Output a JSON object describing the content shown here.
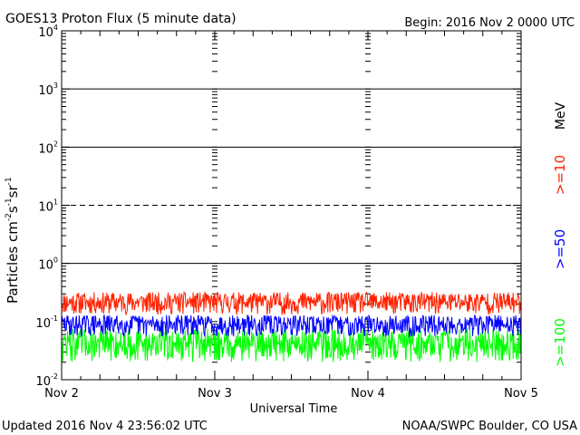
{
  "chart_data": {
    "type": "line",
    "title": "GOES13 Proton Flux (5 minute data)",
    "begin_label": "Begin: 2016 Nov 2 0000 UTC",
    "xlabel": "Universal Time",
    "ylabel_main": "Particles cm",
    "ylabel_sup1": "-2",
    "ylabel_mid1": "s",
    "ylabel_sup2": "-1",
    "ylabel_mid2": "sr",
    "ylabel_sup3": "-1",
    "y_scale": "log",
    "ylim": [
      0.01,
      10000
    ],
    "y_ticks": [
      {
        "base": "10",
        "exp": "4",
        "value": 10000
      },
      {
        "base": "10",
        "exp": "3",
        "value": 1000
      },
      {
        "base": "10",
        "exp": "2",
        "value": 100
      },
      {
        "base": "10",
        "exp": "1",
        "value": 10
      },
      {
        "base": "10",
        "exp": "0",
        "value": 1
      },
      {
        "base": "10",
        "exp": "-1",
        "value": 0.1
      },
      {
        "base": "10",
        "exp": "-2",
        "value": 0.01
      }
    ],
    "x_ticks": [
      "Nov 2",
      "Nov 3",
      "Nov 4",
      "Nov 5"
    ],
    "xlim_days": [
      0,
      3
    ],
    "reference_lines": [
      {
        "value": 1000,
        "style": "solid"
      },
      {
        "value": 100,
        "style": "solid"
      },
      {
        "value": 10,
        "style": "dashed"
      },
      {
        "value": 1,
        "style": "solid"
      }
    ],
    "series_unit": "MeV",
    "series": [
      {
        "name": ">=10",
        "color": "#ff2200",
        "range": [
          0.13,
          0.32
        ],
        "seed": 11
      },
      {
        "name": ">=50",
        "color": "#0000ff",
        "range": [
          0.055,
          0.13
        ],
        "seed": 29
      },
      {
        "name": ">=100",
        "color": "#00ff00",
        "range": [
          0.02,
          0.075
        ],
        "seed": 47
      }
    ],
    "points_per_series": 864
  },
  "footer": {
    "updated": "Updated 2016 Nov  4 23:56:02 UTC",
    "source": "NOAA/SWPC Boulder, CO USA"
  }
}
